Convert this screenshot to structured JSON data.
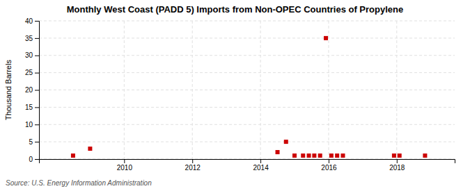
{
  "chart_data": {
    "type": "scatter",
    "title": "Monthly West Coast (PADD 5) Imports from Non-OPEC Countries of Propylene",
    "ylabel": "Thousand Barrels",
    "source": "Source: U.S. Energy Information Administration",
    "x": [
      2008.5,
      2009.0,
      2014.5,
      2014.75,
      2015.0,
      2015.25,
      2015.42,
      2015.58,
      2015.75,
      2015.92,
      2016.08,
      2016.25,
      2016.42,
      2017.92,
      2018.08,
      2018.83
    ],
    "values": [
      1,
      3,
      2,
      5,
      1,
      1,
      1,
      1,
      1,
      35,
      1,
      1,
      1,
      1,
      1,
      1
    ],
    "color": "#cc0000",
    "marker": "square",
    "xlim": [
      2007.5,
      2019.7
    ],
    "ylim": [
      0,
      40
    ],
    "xticks": [
      2010,
      2012,
      2014,
      2016,
      2018
    ],
    "yticks": [
      0,
      5,
      10,
      15,
      20,
      25,
      30,
      35,
      40
    ],
    "grid": true
  }
}
